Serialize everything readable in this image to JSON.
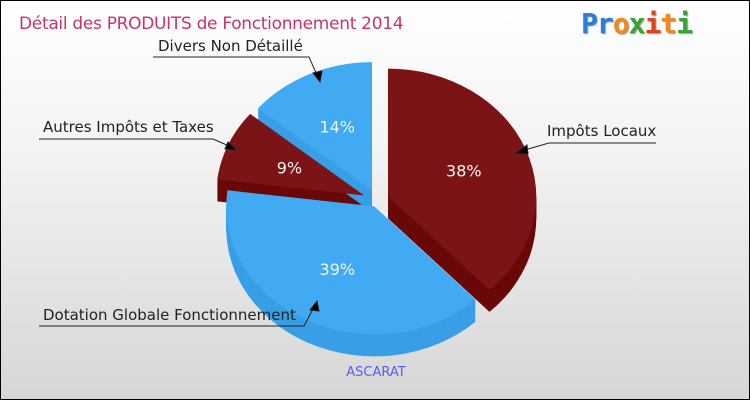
{
  "title": "Détail des PRODUITS de Fonctionnement 2014",
  "logo": {
    "letters": [
      "P",
      "r",
      "o",
      "x",
      "i",
      "t",
      "i"
    ],
    "colors": [
      "#2a7fd4",
      "#2a7fd4",
      "#f08a1e",
      "#3aa43a",
      "#e0421e",
      "#f08a1e",
      "#3aa43a"
    ]
  },
  "caption": "ASCARAT",
  "chart_data": {
    "type": "pie",
    "title": "Détail des PRODUITS de Fonctionnement 2014",
    "slices": [
      {
        "label": "Impôts Locaux",
        "value": 38,
        "pct_label": "38%",
        "color": "#7a1416",
        "side": "#690909"
      },
      {
        "label": "Dotation Globale Fonctionnement",
        "value": 39,
        "pct_label": "39%",
        "color": "#42aaf2",
        "side": "#389fe6"
      },
      {
        "label": "Autres Impôts et Taxes",
        "value": 9,
        "pct_label": "9%",
        "color": "#7a1416",
        "side": "#690909"
      },
      {
        "label": "Divers Non Détaillé",
        "value": 14,
        "pct_label": "14%",
        "color": "#42aaf2",
        "side": "#389fe6"
      }
    ]
  }
}
